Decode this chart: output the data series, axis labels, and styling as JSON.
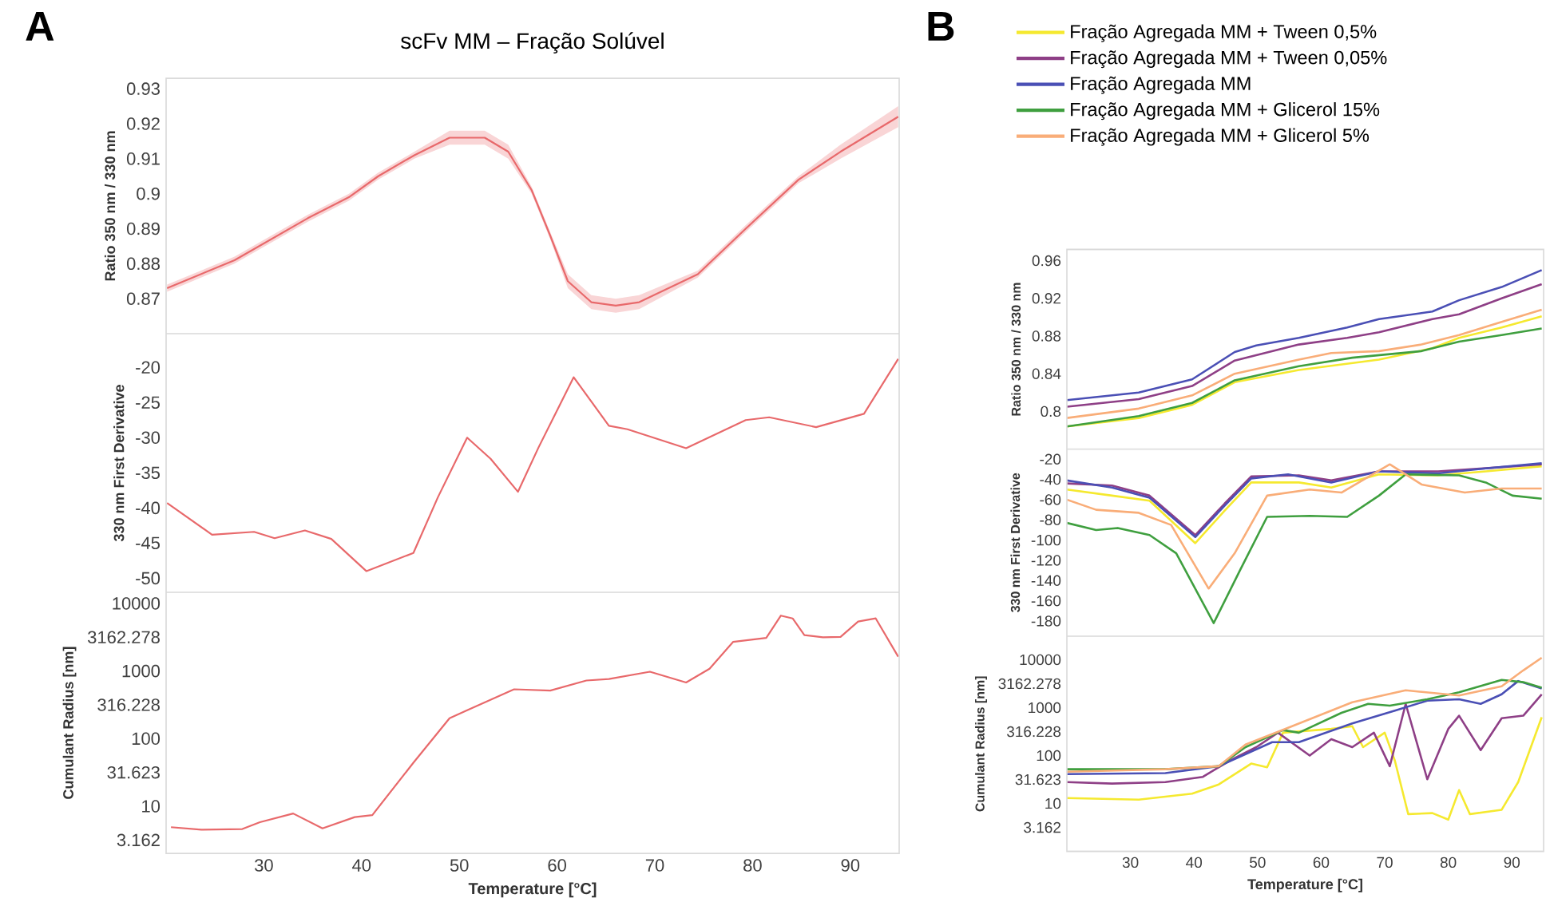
{
  "chart_data": [
    {
      "type": "line",
      "title": "scFv MM – Fração Solúvel",
      "annotations": [
        "A"
      ],
      "ylabel": "Ratio 350 nm / 330 nm",
      "xlim": [
        20,
        95
      ],
      "xticks": [
        30,
        40,
        50,
        60,
        70,
        80,
        90
      ],
      "ylim": [
        0.86,
        0.933
      ],
      "yticks": [
        0.87,
        0.88,
        0.89,
        0.9,
        0.91,
        0.92,
        0.93
      ],
      "tick_labels": "y",
      "series": [
        {
          "color": "#e8696b",
          "x": [
            20.1,
            27,
            34.5,
            38.7,
            41.7,
            45.4,
            49,
            52.6,
            55,
            57.4,
            59.3,
            61.1,
            63.5,
            66,
            68.4,
            74.4,
            79.3,
            84.7,
            89,
            94.9
          ],
          "values": [
            0.873,
            0.881,
            0.893,
            0.899,
            0.905,
            0.911,
            0.916,
            0.916,
            0.912,
            0.901,
            0.888,
            0.875,
            0.869,
            0.868,
            0.869,
            0.877,
            0.89,
            0.904,
            0.912,
            0.922
          ],
          "upper": [
            0.874,
            0.882,
            0.894,
            0.9,
            0.906,
            0.912,
            0.918,
            0.918,
            0.914,
            0.902,
            0.889,
            0.877,
            0.871,
            0.87,
            0.871,
            0.878,
            0.891,
            0.905,
            0.914,
            0.925
          ],
          "lower": [
            0.872,
            0.88,
            0.892,
            0.898,
            0.904,
            0.91,
            0.914,
            0.914,
            0.91,
            0.9,
            0.887,
            0.873,
            0.867,
            0.866,
            0.867,
            0.876,
            0.889,
            0.903,
            0.91,
            0.919
          ]
        }
      ]
    },
    {
      "type": "line",
      "ylabel": "330 nm First Derivative",
      "xlim": [
        20,
        95
      ],
      "xticks": [
        30,
        40,
        50,
        60,
        70,
        80,
        90
      ],
      "ylim": [
        -52,
        -15.2
      ],
      "yticks": [
        -50,
        -45,
        -40,
        -35,
        -30,
        -25,
        -20
      ],
      "tick_labels": "y",
      "series": [
        {
          "color": "#e8696b",
          "x": [
            20.1,
            24.7,
            29,
            31.1,
            34.2,
            36.9,
            40.5,
            45.3,
            47.8,
            50.8,
            53.2,
            56,
            58.1,
            61.7,
            65.3,
            67.2,
            73.2,
            79.3,
            81.7,
            86.5,
            91.4,
            94.9
          ],
          "values": [
            -39.3,
            -43.8,
            -43.4,
            -44.3,
            -43.2,
            -44.4,
            -49,
            -46.4,
            -38.5,
            -30,
            -33,
            -37.7,
            -31.4,
            -21.4,
            -28.3,
            -28.8,
            -31.5,
            -27.5,
            -27.1,
            -28.5,
            -26.6,
            -18.8
          ]
        }
      ]
    },
    {
      "type": "line",
      "ylabel": "Cumulant Radius [nm]",
      "xlabel": "Temperature [°C]",
      "log": "y",
      "xlim": [
        20,
        95
      ],
      "xticks": [
        30,
        40,
        50,
        60,
        70,
        80,
        90
      ],
      "ylim": [
        2,
        14600
      ],
      "yticks": [
        3.162,
        10,
        31.623,
        100,
        316.228,
        1000,
        3162.278,
        10000
      ],
      "series": [
        {
          "color": "#e8696b",
          "x": [
            20.5,
            23.6,
            27.8,
            29.6,
            33,
            36,
            39.3,
            41.1,
            45.3,
            49,
            50.8,
            55.6,
            59.3,
            63,
            65.3,
            69.5,
            73.2,
            75.6,
            78,
            81.4,
            82.9,
            84.1,
            85.3,
            87.2,
            89,
            90.8,
            92.6,
            94.9
          ],
          "values": [
            4.9,
            4.5,
            4.6,
            5.8,
            7.8,
            4.7,
            6.9,
            7.4,
            44,
            200,
            263,
            537,
            513,
            724,
            760,
            977,
            676,
            1080,
            2690,
            3090,
            6600,
            6000,
            3400,
            3150,
            3200,
            5400,
            6000,
            1630
          ]
        }
      ]
    },
    {
      "type": "line",
      "annotations": [
        "B"
      ],
      "ylabel": "Ratio 350 nm / 330 nm",
      "legend": "top",
      "xlim": [
        20,
        95
      ],
      "xticks": [
        30,
        40,
        50,
        60,
        70,
        80,
        90
      ],
      "ylim": [
        0.76,
        0.972
      ],
      "yticks": [
        0.8,
        0.84,
        0.88,
        0.92,
        0.96
      ],
      "tick_labels": "y",
      "series": [
        {
          "name": "Fração Agregada MM + Tween 0,5%",
          "color": "#f5e92f",
          "x": [
            20,
            31.3,
            39.7,
            46.4,
            56.5,
            69.1,
            77.5,
            81.7,
            88.4,
            94.7
          ],
          "values": [
            0.784,
            0.793,
            0.807,
            0.831,
            0.844,
            0.855,
            0.867,
            0.878,
            0.889,
            0.901
          ]
        },
        {
          "name": "Fração Agregada MM + Tween 0,05%",
          "color": "#8e3f86",
          "x": [
            20,
            31.3,
            39.7,
            46.4,
            56.5,
            64.1,
            69.1,
            77.5,
            81.7,
            88.4,
            94.7
          ],
          "values": [
            0.805,
            0.813,
            0.827,
            0.854,
            0.871,
            0.878,
            0.884,
            0.898,
            0.903,
            0.92,
            0.935
          ]
        },
        {
          "name": "Fração Agregada MM",
          "color": "#4a4fb5",
          "x": [
            20,
            31.3,
            39.7,
            46.4,
            49.8,
            56.5,
            64.1,
            69.1,
            77.5,
            81.7,
            88.4,
            94.7
          ],
          "values": [
            0.812,
            0.82,
            0.834,
            0.863,
            0.87,
            0.878,
            0.889,
            0.898,
            0.906,
            0.918,
            0.932,
            0.95
          ]
        },
        {
          "name": "Fração Agregada MM + Glicerol 15%",
          "color": "#3f9f3f",
          "x": [
            20,
            31.3,
            39.7,
            46.4,
            56.5,
            64.9,
            75.8,
            81.7,
            88.4,
            94.7
          ],
          "values": [
            0.784,
            0.795,
            0.809,
            0.833,
            0.848,
            0.857,
            0.864,
            0.874,
            0.881,
            0.888
          ]
        },
        {
          "name": "Fração Agregada MM + Glicerol 5%",
          "color": "#f9ad78",
          "x": [
            20,
            31.3,
            39.7,
            46.4,
            56.5,
            61.6,
            69.1,
            75.8,
            81.7,
            88.4,
            94.7
          ],
          "values": [
            0.793,
            0.803,
            0.817,
            0.84,
            0.855,
            0.862,
            0.864,
            0.871,
            0.881,
            0.895,
            0.908
          ]
        }
      ]
    },
    {
      "type": "line",
      "ylabel": "330 nm First Derivative",
      "xlim": [
        20,
        95
      ],
      "xticks": [
        30,
        40,
        50,
        60,
        70,
        80,
        90
      ],
      "ylim": [
        -195,
        -10
      ],
      "yticks": [
        -180,
        -160,
        -140,
        -120,
        -100,
        -80,
        -60,
        -40,
        -20
      ],
      "tick_labels": "y",
      "series": [
        {
          "color": "#f5e92f",
          "x": [
            20,
            27.1,
            33,
            40.2,
            44.8,
            49,
            56.5,
            61.6,
            69.1,
            78.4,
            85.9,
            94.7
          ],
          "values": [
            -50,
            -56,
            -61,
            -103,
            -71,
            -43,
            -43,
            -48,
            -35,
            -36,
            -32,
            -27
          ]
        },
        {
          "color": "#8e3f86",
          "x": [
            20,
            27.1,
            33,
            40.2,
            44.8,
            49,
            56.5,
            61.6,
            69.1,
            78.4,
            85.9,
            94.7
          ],
          "values": [
            -44,
            -46,
            -56,
            -95,
            -64,
            -37,
            -36,
            -41,
            -32,
            -32,
            -29,
            -25
          ]
        },
        {
          "color": "#4a4fb5",
          "x": [
            20,
            27.1,
            33,
            40.2,
            44.8,
            49,
            54.8,
            61.6,
            69.1,
            78.4,
            85.9,
            94.7
          ],
          "values": [
            -41,
            -48,
            -58,
            -97,
            -66,
            -39,
            -35,
            -43,
            -32,
            -34,
            -29,
            -24
          ]
        },
        {
          "color": "#3f9f3f",
          "x": [
            20,
            24.6,
            28,
            33,
            37.2,
            43.1,
            47.3,
            51.5,
            58.2,
            64.1,
            69.1,
            73.3,
            81.7,
            85.9,
            90.1,
            94.7
          ],
          "values": [
            -83,
            -90,
            -88,
            -95,
            -113,
            -182,
            -129,
            -77,
            -76,
            -77,
            -56,
            -35,
            -36,
            -43,
            -56,
            -59
          ]
        },
        {
          "color": "#f9ad78",
          "x": [
            20,
            24.6,
            31.3,
            36.4,
            42.3,
            46.4,
            51.5,
            58.2,
            63.2,
            70.8,
            75.8,
            82.6,
            88.4,
            94.7
          ],
          "values": [
            -60,
            -70,
            -73,
            -85,
            -148,
            -113,
            -56,
            -50,
            -53,
            -25,
            -45,
            -53,
            -49,
            -49
          ]
        }
      ]
    },
    {
      "type": "line",
      "ylabel": "Cumulant Radius [nm]",
      "xlabel": "Temperature [°C]",
      "log": "y",
      "xlim": [
        20,
        95
      ],
      "xticks": [
        30,
        40,
        50,
        60,
        70,
        80,
        90
      ],
      "ylim": [
        1,
        31000
      ],
      "yticks": [
        3.162,
        10,
        31.623,
        100,
        316.228,
        1000,
        3162.278,
        10000
      ],
      "series": [
        {
          "color": "#f5e92f",
          "x": [
            20,
            31.3,
            39.7,
            43.9,
            49,
            51.5,
            54,
            61.6,
            64.9,
            66.6,
            70,
            71.6,
            73.7,
            77.5,
            80,
            81.7,
            83.4,
            88.4,
            91,
            94.7
          ],
          "values": [
            13,
            12,
            16,
            25,
            68,
            57,
            300,
            360,
            410,
            150,
            300,
            78,
            6,
            6.3,
            4.6,
            19,
            6,
            7.4,
            28,
            630
          ]
        },
        {
          "color": "#8e3f86",
          "x": [
            20,
            27.1,
            35.5,
            41.4,
            45.6,
            49.8,
            53.2,
            58.2,
            61.6,
            64.9,
            68.3,
            70.8,
            73.3,
            76.7,
            80,
            81.7,
            85.1,
            88.4,
            91.8,
            94.7
          ],
          "values": [
            28,
            26,
            28,
            36,
            78,
            150,
            300,
            100,
            220,
            150,
            300,
            60,
            1200,
            32,
            360,
            680,
            130,
            600,
            680,
            1900
          ]
        },
        {
          "color": "#4a4fb5",
          "x": [
            20,
            35.5,
            43.9,
            52.3,
            56.5,
            64.9,
            71.6,
            76.7,
            81.7,
            85.1,
            88.4,
            91,
            94.7
          ],
          "values": [
            41,
            43,
            60,
            190,
            190,
            470,
            870,
            1400,
            1500,
            1200,
            1900,
            3600,
            2500
          ]
        },
        {
          "color": "#3f9f3f",
          "x": [
            20,
            35.5,
            43.9,
            48.1,
            54,
            56.5,
            63.2,
            67.4,
            70.8,
            76.7,
            81.7,
            88.4,
            91.8,
            94.7
          ],
          "values": [
            52,
            52,
            60,
            150,
            340,
            300,
            780,
            1200,
            1100,
            1500,
            2100,
            3800,
            3400,
            2600
          ]
        },
        {
          "color": "#f9ad78",
          "x": [
            20,
            35.5,
            43.9,
            48.1,
            54.8,
            64.9,
            73.3,
            81.7,
            88.4,
            91.8,
            94.7
          ],
          "values": [
            46,
            52,
            60,
            170,
            380,
            1300,
            2300,
            1800,
            2800,
            6000,
            11000
          ]
        }
      ]
    }
  ]
}
